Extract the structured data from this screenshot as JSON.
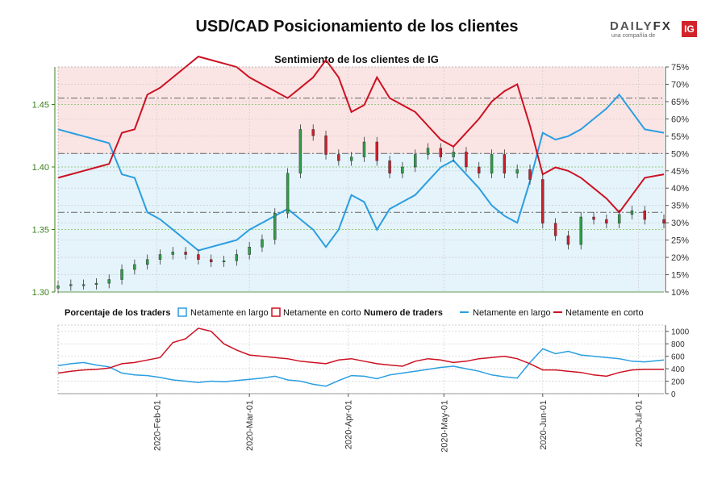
{
  "header": {
    "title": "USD/CAD Posicionamiento de los clientes",
    "logo_text": "DAILYFX",
    "logo_tagline": "una compañía de",
    "logo_badge": "IG"
  },
  "colors": {
    "long": "#2a9ee0",
    "short": "#cc1122",
    "long_zone": "#e5f3fb",
    "short_zone": "#fbe4e4",
    "price_axis": "#3a7f1e",
    "candle_up": "#2f9e48",
    "candle_down": "#c91f2d"
  },
  "chart_data": [
    {
      "type": "line",
      "title": "Sentimiento de los clientes de IG",
      "x_ticks": [
        "2020-Feb-01",
        "2020-Mar-01",
        "2020-Apr-01",
        "2020-May-01",
        "2020-Jun-01",
        "2020-Jul-01"
      ],
      "x_range": [
        "2020-01-01",
        "2020-07-09"
      ],
      "y_left_ticks": [
        "1.30",
        "1.35",
        "1.40",
        "1.45"
      ],
      "y_left_range": [
        1.3,
        1.48
      ],
      "y_right_ticks": [
        "10%",
        "15%",
        "20%",
        "25%",
        "30%",
        "35%",
        "40%",
        "45%",
        "50%",
        "55%",
        "60%",
        "65%",
        "70%",
        "75%"
      ],
      "y_right_range": [
        10,
        75
      ],
      "reference_lines_pct": [
        33,
        50,
        66
      ],
      "reference_lines_price": [
        1.35,
        1.4,
        1.45
      ],
      "series": [
        {
          "name": "Netamente en largo",
          "axis": "right",
          "x": [
            "2020-01-01",
            "2020-01-05",
            "2020-01-09",
            "2020-01-13",
            "2020-01-17",
            "2020-01-21",
            "2020-01-25",
            "2020-01-29",
            "2020-02-02",
            "2020-02-06",
            "2020-02-10",
            "2020-02-14",
            "2020-02-18",
            "2020-02-22",
            "2020-02-26",
            "2020-03-01",
            "2020-03-05",
            "2020-03-09",
            "2020-03-13",
            "2020-03-17",
            "2020-03-21",
            "2020-03-25",
            "2020-03-29",
            "2020-04-02",
            "2020-04-06",
            "2020-04-10",
            "2020-04-14",
            "2020-04-18",
            "2020-04-22",
            "2020-04-26",
            "2020-04-30",
            "2020-05-04",
            "2020-05-08",
            "2020-05-12",
            "2020-05-16",
            "2020-05-20",
            "2020-05-24",
            "2020-05-28",
            "2020-06-01",
            "2020-06-05",
            "2020-06-09",
            "2020-06-13",
            "2020-06-17",
            "2020-06-21",
            "2020-06-25",
            "2020-06-29",
            "2020-07-03",
            "2020-07-09"
          ],
          "values": [
            57,
            56,
            55,
            54,
            53,
            44,
            43,
            33,
            31,
            28,
            25,
            22,
            23,
            24,
            25,
            28,
            30,
            32,
            34,
            31,
            28,
            23,
            28,
            38,
            36,
            28,
            34,
            36,
            38,
            42,
            46,
            48,
            44,
            40,
            35,
            32,
            30,
            42,
            56,
            54,
            55,
            57,
            60,
            63,
            67,
            62,
            57,
            56
          ]
        },
        {
          "name": "Netamente en corto",
          "axis": "right",
          "x": [
            "2020-01-01",
            "2020-01-05",
            "2020-01-09",
            "2020-01-13",
            "2020-01-17",
            "2020-01-21",
            "2020-01-25",
            "2020-01-29",
            "2020-02-02",
            "2020-02-06",
            "2020-02-10",
            "2020-02-14",
            "2020-02-18",
            "2020-02-22",
            "2020-02-26",
            "2020-03-01",
            "2020-03-05",
            "2020-03-09",
            "2020-03-13",
            "2020-03-17",
            "2020-03-21",
            "2020-03-25",
            "2020-03-29",
            "2020-04-02",
            "2020-04-06",
            "2020-04-10",
            "2020-04-14",
            "2020-04-18",
            "2020-04-22",
            "2020-04-26",
            "2020-04-30",
            "2020-05-04",
            "2020-05-08",
            "2020-05-12",
            "2020-05-16",
            "2020-05-20",
            "2020-05-24",
            "2020-05-28",
            "2020-06-01",
            "2020-06-05",
            "2020-06-09",
            "2020-06-13",
            "2020-06-17",
            "2020-06-21",
            "2020-06-25",
            "2020-06-29",
            "2020-07-03",
            "2020-07-09"
          ],
          "values": [
            43,
            44,
            45,
            46,
            47,
            56,
            57,
            67,
            69,
            72,
            75,
            78,
            77,
            76,
            75,
            72,
            70,
            68,
            66,
            69,
            72,
            77,
            72,
            62,
            64,
            72,
            66,
            64,
            62,
            58,
            54,
            52,
            56,
            60,
            65,
            68,
            70,
            58,
            44,
            46,
            45,
            43,
            40,
            37,
            33,
            38,
            43,
            44
          ]
        }
      ],
      "price_candles": {
        "name": "USD/CAD",
        "axis": "left",
        "x": [
          "2020-01-01",
          "2020-01-05",
          "2020-01-09",
          "2020-01-13",
          "2020-01-17",
          "2020-01-21",
          "2020-01-25",
          "2020-01-29",
          "2020-02-02",
          "2020-02-06",
          "2020-02-10",
          "2020-02-14",
          "2020-02-18",
          "2020-02-22",
          "2020-02-26",
          "2020-03-01",
          "2020-03-05",
          "2020-03-09",
          "2020-03-13",
          "2020-03-17",
          "2020-03-21",
          "2020-03-25",
          "2020-03-29",
          "2020-04-02",
          "2020-04-06",
          "2020-04-10",
          "2020-04-14",
          "2020-04-18",
          "2020-04-22",
          "2020-04-26",
          "2020-04-30",
          "2020-05-04",
          "2020-05-08",
          "2020-05-12",
          "2020-05-16",
          "2020-05-20",
          "2020-05-24",
          "2020-05-28",
          "2020-06-01",
          "2020-06-05",
          "2020-06-09",
          "2020-06-13",
          "2020-06-17",
          "2020-06-21",
          "2020-06-25",
          "2020-06-29",
          "2020-07-03",
          "2020-07-09"
        ],
        "values": [
          1.305,
          1.306,
          1.306,
          1.307,
          1.31,
          1.318,
          1.322,
          1.326,
          1.33,
          1.332,
          1.33,
          1.326,
          1.324,
          1.325,
          1.33,
          1.336,
          1.342,
          1.363,
          1.395,
          1.43,
          1.425,
          1.41,
          1.405,
          1.408,
          1.42,
          1.405,
          1.395,
          1.4,
          1.41,
          1.415,
          1.408,
          1.412,
          1.4,
          1.395,
          1.41,
          1.395,
          1.398,
          1.39,
          1.355,
          1.345,
          1.338,
          1.36,
          1.358,
          1.355,
          1.362,
          1.365,
          1.358,
          1.355
        ]
      }
    },
    {
      "type": "line",
      "title": "",
      "legend_left_title": "Porcentaje de los traders",
      "legend_left_items": [
        "Netamente en largo",
        "Netamente en corto"
      ],
      "legend_right_title": "Numero de traders",
      "legend_right_items": [
        "Netamente en largo",
        "Netamente en corto"
      ],
      "y_ticks": [
        "0",
        "200",
        "400",
        "600",
        "800",
        "1000"
      ],
      "y_range": [
        0,
        1100
      ],
      "x_range": [
        "2020-01-01",
        "2020-07-09"
      ],
      "series": [
        {
          "name": "Netamente en largo",
          "x": [
            "2020-01-01",
            "2020-01-05",
            "2020-01-09",
            "2020-01-13",
            "2020-01-17",
            "2020-01-21",
            "2020-01-25",
            "2020-01-29",
            "2020-02-02",
            "2020-02-06",
            "2020-02-10",
            "2020-02-14",
            "2020-02-18",
            "2020-02-22",
            "2020-02-26",
            "2020-03-01",
            "2020-03-05",
            "2020-03-09",
            "2020-03-13",
            "2020-03-17",
            "2020-03-21",
            "2020-03-25",
            "2020-03-29",
            "2020-04-02",
            "2020-04-06",
            "2020-04-10",
            "2020-04-14",
            "2020-04-18",
            "2020-04-22",
            "2020-04-26",
            "2020-04-30",
            "2020-05-04",
            "2020-05-08",
            "2020-05-12",
            "2020-05-16",
            "2020-05-20",
            "2020-05-24",
            "2020-05-28",
            "2020-06-01",
            "2020-06-05",
            "2020-06-09",
            "2020-06-13",
            "2020-06-17",
            "2020-06-21",
            "2020-06-25",
            "2020-06-29",
            "2020-07-03",
            "2020-07-09"
          ],
          "values": [
            450,
            480,
            500,
            460,
            430,
            330,
            300,
            290,
            260,
            220,
            200,
            180,
            200,
            190,
            210,
            230,
            250,
            280,
            220,
            200,
            150,
            120,
            210,
            290,
            280,
            240,
            300,
            330,
            360,
            390,
            420,
            440,
            400,
            360,
            300,
            270,
            250,
            500,
            720,
            640,
            680,
            620,
            600,
            580,
            560,
            520,
            510,
            540
          ]
        },
        {
          "name": "Netamente en corto",
          "x": [
            "2020-01-01",
            "2020-01-05",
            "2020-01-09",
            "2020-01-13",
            "2020-01-17",
            "2020-01-21",
            "2020-01-25",
            "2020-01-29",
            "2020-02-02",
            "2020-02-06",
            "2020-02-10",
            "2020-02-14",
            "2020-02-18",
            "2020-02-22",
            "2020-02-26",
            "2020-03-01",
            "2020-03-05",
            "2020-03-09",
            "2020-03-13",
            "2020-03-17",
            "2020-03-21",
            "2020-03-25",
            "2020-03-29",
            "2020-04-02",
            "2020-04-06",
            "2020-04-10",
            "2020-04-14",
            "2020-04-18",
            "2020-04-22",
            "2020-04-26",
            "2020-04-30",
            "2020-05-04",
            "2020-05-08",
            "2020-05-12",
            "2020-05-16",
            "2020-05-20",
            "2020-05-24",
            "2020-05-28",
            "2020-06-01",
            "2020-06-05",
            "2020-06-09",
            "2020-06-13",
            "2020-06-17",
            "2020-06-21",
            "2020-06-25",
            "2020-06-29",
            "2020-07-03",
            "2020-07-09"
          ],
          "values": [
            330,
            360,
            380,
            390,
            410,
            480,
            500,
            540,
            580,
            820,
            880,
            1050,
            1000,
            800,
            700,
            620,
            600,
            580,
            560,
            520,
            500,
            480,
            540,
            560,
            520,
            480,
            460,
            440,
            520,
            560,
            540,
            500,
            520,
            560,
            580,
            600,
            560,
            480,
            380,
            380,
            360,
            340,
            300,
            280,
            340,
            380,
            390,
            390
          ]
        }
      ]
    }
  ]
}
